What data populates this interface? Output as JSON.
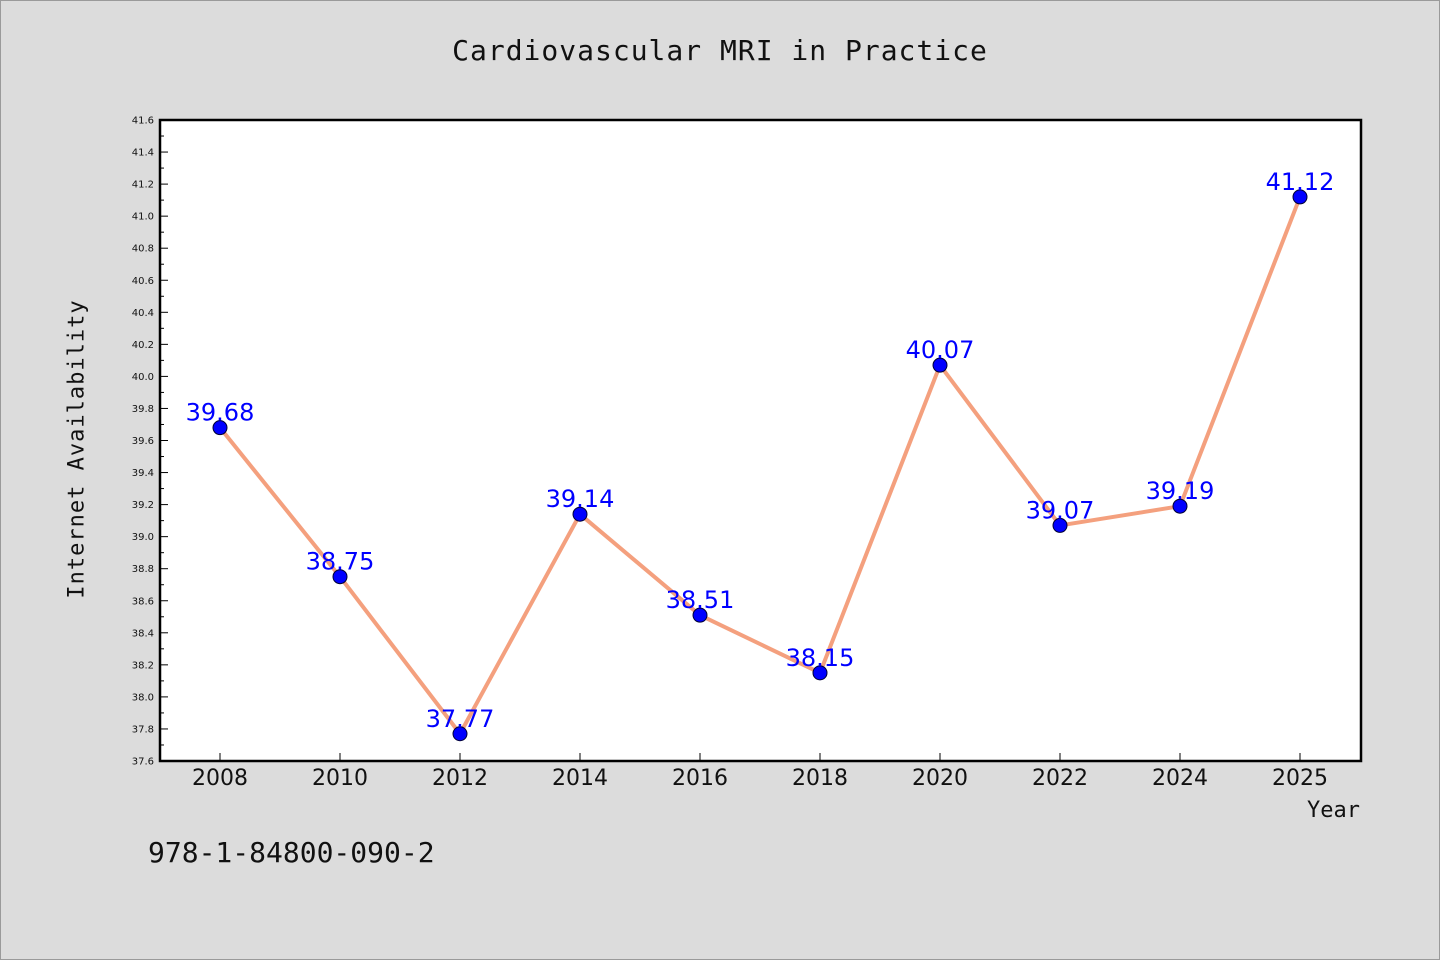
{
  "chart_data": {
    "type": "line",
    "title": "Cardiovascular MRI in Practice",
    "xlabel": "Year",
    "ylabel": "Internet Availability",
    "x": [
      "2008",
      "2010",
      "2012",
      "2014",
      "2016",
      "2018",
      "2020",
      "2022",
      "2024",
      "2025"
    ],
    "series": [
      {
        "values": [
          39.68,
          38.75,
          37.77,
          39.14,
          38.51,
          38.15,
          40.07,
          39.07,
          39.19,
          41.12
        ]
      }
    ],
    "data_labels": [
      "39.68",
      "38.75",
      "37.77",
      "39.14",
      "38.51",
      "38.15",
      "40.07",
      "39.07",
      "39.19",
      "41.12"
    ],
    "ylim": [
      37.6,
      41.6
    ],
    "yticks": [
      "37.6",
      "37.8",
      "38.0",
      "38.2",
      "38.4",
      "38.6",
      "38.8",
      "39.0",
      "39.2",
      "39.4",
      "39.6",
      "39.8",
      "40.0",
      "40.2",
      "40.4",
      "40.6",
      "40.8",
      "41.0",
      "41.2",
      "41.4",
      "41.6"
    ],
    "grid": false,
    "line_color": "#f4a07e",
    "marker_color": "#0000ff",
    "label_color": "#0000ff",
    "background": "#dcdcdc",
    "plot_background": "#ffffff"
  },
  "footer": {
    "isbn": "978-1-84800-090-2"
  }
}
